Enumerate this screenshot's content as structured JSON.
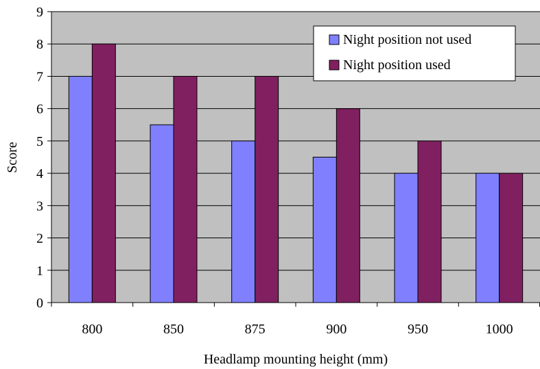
{
  "chart_data": {
    "type": "bar",
    "title": "",
    "xlabel": "Headlamp mounting height (mm)",
    "ylabel": "Score",
    "categories": [
      "800",
      "850",
      "875",
      "900",
      "950",
      "1000"
    ],
    "ylim": [
      0,
      9
    ],
    "yticks": [
      "0",
      "1",
      "2",
      "3",
      "4",
      "5",
      "6",
      "7",
      "8",
      "9"
    ],
    "grid": true,
    "legend_position": "top-right",
    "plot_background": "#C0C0C0",
    "series": [
      {
        "name": "Night position not used",
        "color": "#8080FF",
        "values": [
          7,
          5.5,
          5,
          4.5,
          4,
          4
        ]
      },
      {
        "name": "Night position used",
        "color": "#802060",
        "values": [
          8,
          7,
          7,
          6,
          5,
          4
        ]
      }
    ]
  }
}
